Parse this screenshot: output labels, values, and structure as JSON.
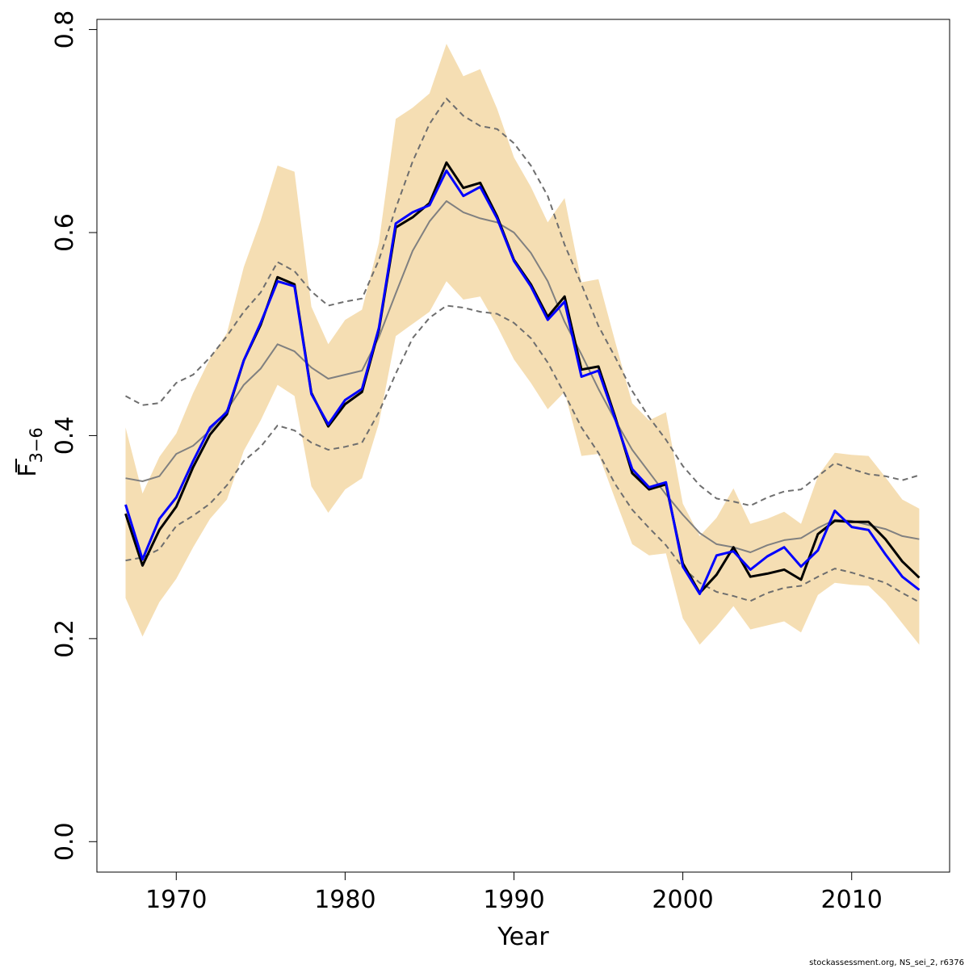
{
  "chart_data": {
    "type": "line",
    "xlabel": "Year",
    "ylabel_main": "F",
    "ylabel_sub": "3−6",
    "xlim": [
      1965.3,
      2015.8
    ],
    "ylim": [
      -0.03,
      0.81
    ],
    "x_ticks": [
      1970,
      1980,
      1990,
      2000,
      2010
    ],
    "x_tick_labels": [
      "1970",
      "1980",
      "1990",
      "2000",
      "2010"
    ],
    "y_ticks": [
      0.0,
      0.2,
      0.4,
      0.6,
      0.8
    ],
    "y_tick_labels": [
      "0.0",
      "0.2",
      "0.4",
      "0.6",
      "0.8"
    ],
    "grid": false,
    "x": [
      1967,
      1968,
      1969,
      1970,
      1971,
      1972,
      1973,
      1974,
      1975,
      1976,
      1977,
      1978,
      1979,
      1980,
      1981,
      1982,
      1983,
      1984,
      1985,
      1986,
      1987,
      1988,
      1989,
      1990,
      1991,
      1992,
      1993,
      1994,
      1995,
      1996,
      1997,
      1998,
      1999,
      2000,
      2001,
      2002,
      2003,
      2004,
      2005,
      2006,
      2007,
      2008,
      2009,
      2010,
      2011,
      2012,
      2013,
      2014
    ],
    "band": {
      "color": "#f5deb3",
      "upper": [
        0.408,
        0.343,
        0.379,
        0.402,
        0.442,
        0.476,
        0.501,
        0.566,
        0.612,
        0.666,
        0.66,
        0.527,
        0.49,
        0.514,
        0.524,
        0.59,
        0.712,
        0.723,
        0.737,
        0.786,
        0.754,
        0.761,
        0.722,
        0.674,
        0.645,
        0.61,
        0.634,
        0.551,
        0.554,
        0.492,
        0.432,
        0.415,
        0.423,
        0.333,
        0.301,
        0.319,
        0.348,
        0.313,
        0.318,
        0.325,
        0.313,
        0.36,
        0.383,
        0.381,
        0.38,
        0.359,
        0.337,
        0.328
      ],
      "lower": [
        0.24,
        0.202,
        0.236,
        0.259,
        0.29,
        0.318,
        0.337,
        0.385,
        0.415,
        0.45,
        0.439,
        0.35,
        0.324,
        0.347,
        0.358,
        0.412,
        0.498,
        0.51,
        0.522,
        0.552,
        0.534,
        0.537,
        0.508,
        0.475,
        0.452,
        0.426,
        0.443,
        0.38,
        0.382,
        0.337,
        0.293,
        0.282,
        0.284,
        0.22,
        0.194,
        0.212,
        0.232,
        0.209,
        0.213,
        0.217,
        0.206,
        0.243,
        0.255,
        0.253,
        0.252,
        0.236,
        0.215,
        0.194
      ]
    },
    "series": [
      {
        "color": "#000000",
        "width": 3,
        "dash": "",
        "values": [
          0.323,
          0.272,
          0.307,
          0.33,
          0.369,
          0.401,
          0.421,
          0.474,
          0.509,
          0.556,
          0.549,
          0.442,
          0.409,
          0.431,
          0.443,
          0.504,
          0.605,
          0.615,
          0.629,
          0.669,
          0.644,
          0.649,
          0.616,
          0.573,
          0.549,
          0.517,
          0.537,
          0.465,
          0.468,
          0.418,
          0.363,
          0.347,
          0.352,
          0.274,
          0.245,
          0.263,
          0.29,
          0.261,
          0.264,
          0.268,
          0.258,
          0.303,
          0.316,
          0.315,
          0.315,
          0.298,
          0.276,
          0.26
        ]
      },
      {
        "color": "#0000ff",
        "width": 3,
        "dash": "",
        "values": [
          0.332,
          0.278,
          0.318,
          0.339,
          0.375,
          0.408,
          0.423,
          0.474,
          0.511,
          0.552,
          0.547,
          0.441,
          0.411,
          0.435,
          0.446,
          0.506,
          0.609,
          0.62,
          0.627,
          0.661,
          0.636,
          0.645,
          0.614,
          0.572,
          0.547,
          0.514,
          0.532,
          0.458,
          0.464,
          0.416,
          0.367,
          0.349,
          0.354,
          0.271,
          0.244,
          0.282,
          0.286,
          0.268,
          0.281,
          0.29,
          0.271,
          0.287,
          0.326,
          0.31,
          0.307,
          0.283,
          0.261,
          0.248
        ]
      },
      {
        "color": "#808080",
        "width": 2,
        "dash": "",
        "values": [
          0.358,
          0.355,
          0.36,
          0.382,
          0.39,
          0.405,
          0.425,
          0.45,
          0.466,
          0.49,
          0.483,
          0.467,
          0.456,
          0.46,
          0.464,
          0.497,
          0.54,
          0.582,
          0.611,
          0.631,
          0.62,
          0.614,
          0.61,
          0.6,
          0.58,
          0.552,
          0.512,
          0.48,
          0.446,
          0.415,
          0.386,
          0.364,
          0.342,
          0.322,
          0.304,
          0.293,
          0.29,
          0.285,
          0.292,
          0.297,
          0.299,
          0.309,
          0.317,
          0.316,
          0.312,
          0.308,
          0.301,
          0.298
        ]
      },
      {
        "color": "#6e6e6e",
        "width": 2,
        "dash": "7,5",
        "values": [
          0.439,
          0.43,
          0.432,
          0.452,
          0.46,
          0.477,
          0.498,
          0.522,
          0.541,
          0.571,
          0.562,
          0.542,
          0.528,
          0.532,
          0.535,
          0.573,
          0.624,
          0.67,
          0.707,
          0.732,
          0.715,
          0.705,
          0.702,
          0.688,
          0.666,
          0.636,
          0.588,
          0.549,
          0.508,
          0.477,
          0.444,
          0.418,
          0.396,
          0.37,
          0.351,
          0.338,
          0.335,
          0.331,
          0.339,
          0.345,
          0.347,
          0.36,
          0.373,
          0.367,
          0.362,
          0.36,
          0.356,
          0.361
        ]
      },
      {
        "color": "#6e6e6e",
        "width": 2,
        "dash": "7,5",
        "values": [
          0.277,
          0.28,
          0.288,
          0.311,
          0.321,
          0.333,
          0.351,
          0.375,
          0.389,
          0.41,
          0.405,
          0.393,
          0.386,
          0.389,
          0.393,
          0.423,
          0.461,
          0.496,
          0.516,
          0.528,
          0.526,
          0.522,
          0.52,
          0.511,
          0.496,
          0.472,
          0.441,
          0.408,
          0.383,
          0.352,
          0.327,
          0.309,
          0.292,
          0.27,
          0.255,
          0.246,
          0.242,
          0.237,
          0.245,
          0.25,
          0.252,
          0.261,
          0.269,
          0.265,
          0.26,
          0.255,
          0.245,
          0.236
        ]
      }
    ]
  },
  "footer": "stockassessment.org, NS_sei_2, r6376"
}
